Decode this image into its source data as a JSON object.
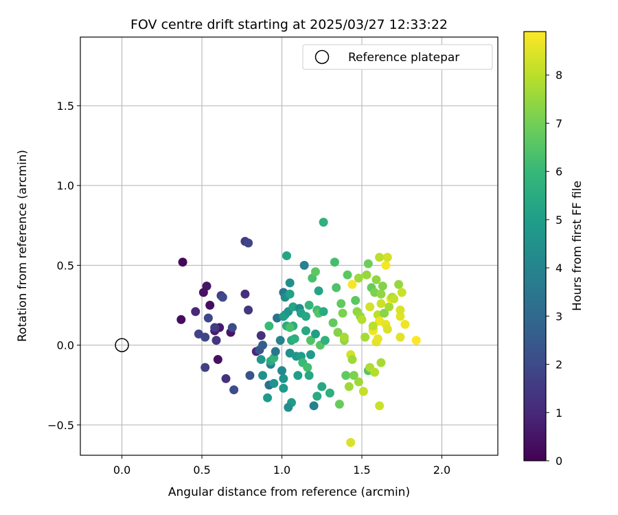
{
  "chart_data": {
    "type": "scatter",
    "title": "FOV centre drift starting at 2025/03/27 12:33:22",
    "xlabel": "Angular distance from reference (arcmin)",
    "ylabel": "Rotation from reference (arcmin)",
    "xlim": [
      -0.26,
      2.35
    ],
    "ylim": [
      -0.69,
      1.93
    ],
    "xticks": [
      0.0,
      0.5,
      1.0,
      1.5,
      2.0
    ],
    "xtick_labels": [
      "0.0",
      "0.5",
      "1.0",
      "1.5",
      "2.0"
    ],
    "yticks": [
      -0.5,
      0.0,
      0.5,
      1.0,
      1.5
    ],
    "ytick_labels": [
      "−0.5",
      "0.0",
      "0.5",
      "1.0",
      "1.5"
    ],
    "grid": true,
    "legend": {
      "location": "top-right",
      "entries": [
        "Reference platepar"
      ]
    },
    "reference_point": {
      "label": "Reference platepar",
      "x": 0.0,
      "y": 0.0
    },
    "colorbar": {
      "label": "Hours from first FF file",
      "range": [
        0,
        8.9
      ],
      "ticks": [
        0,
        1,
        2,
        3,
        4,
        5,
        6,
        7,
        8
      ],
      "tick_labels": [
        "0",
        "1",
        "2",
        "3",
        "4",
        "5",
        "6",
        "7",
        "8"
      ],
      "colormap": [
        "#440154",
        "#482878",
        "#3e4989",
        "#31688e",
        "#26828e",
        "#1f9e89",
        "#35b779",
        "#6ece58",
        "#b5de2b",
        "#fde725"
      ]
    },
    "points": [
      {
        "x": 0.38,
        "y": 0.52,
        "c": 0.2
      },
      {
        "x": 0.37,
        "y": 0.16,
        "c": 0.3
      },
      {
        "x": 0.53,
        "y": 0.37,
        "c": 0.5
      },
      {
        "x": 0.51,
        "y": 0.33,
        "c": 0.4
      },
      {
        "x": 0.55,
        "y": 0.25,
        "c": 0.3
      },
      {
        "x": 0.61,
        "y": 0.11,
        "c": 0.6
      },
      {
        "x": 0.68,
        "y": 0.08,
        "c": 0.5
      },
      {
        "x": 0.58,
        "y": 0.09,
        "c": 0.7
      },
      {
        "x": 0.6,
        "y": -0.09,
        "c": 0.4
      },
      {
        "x": 0.52,
        "y": -0.14,
        "c": 1.7
      },
      {
        "x": 0.65,
        "y": -0.21,
        "c": 1.3
      },
      {
        "x": 0.46,
        "y": 0.21,
        "c": 1.0
      },
      {
        "x": 0.48,
        "y": 0.07,
        "c": 1.8
      },
      {
        "x": 0.52,
        "y": 0.05,
        "c": 1.9
      },
      {
        "x": 0.59,
        "y": 0.03,
        "c": 1.4
      },
      {
        "x": 0.54,
        "y": 0.17,
        "c": 1.9
      },
      {
        "x": 0.58,
        "y": 0.11,
        "c": 1.6
      },
      {
        "x": 0.62,
        "y": 0.31,
        "c": 1.5
      },
      {
        "x": 0.63,
        "y": 0.3,
        "c": 2.0
      },
      {
        "x": 0.69,
        "y": 0.11,
        "c": 2.0
      },
      {
        "x": 0.7,
        "y": -0.28,
        "c": 2.1
      },
      {
        "x": 0.77,
        "y": 0.65,
        "c": 1.6
      },
      {
        "x": 0.79,
        "y": 0.64,
        "c": 1.9
      },
      {
        "x": 0.77,
        "y": 0.32,
        "c": 1.2
      },
      {
        "x": 0.79,
        "y": 0.22,
        "c": 1.4
      },
      {
        "x": 0.8,
        "y": -0.19,
        "c": 2.3
      },
      {
        "x": 0.84,
        "y": -0.04,
        "c": 1.0
      },
      {
        "x": 0.87,
        "y": 0.06,
        "c": 1.3
      },
      {
        "x": 0.86,
        "y": -0.03,
        "c": 2.3
      },
      {
        "x": 0.88,
        "y": 0.0,
        "c": 2.6
      },
      {
        "x": 0.87,
        "y": -0.09,
        "c": 4.7
      },
      {
        "x": 0.88,
        "y": -0.19,
        "c": 4.5
      },
      {
        "x": 0.91,
        "y": -0.33,
        "c": 4.8
      },
      {
        "x": 0.92,
        "y": -0.25,
        "c": 3.2
      },
      {
        "x": 0.93,
        "y": -0.12,
        "c": 3.8
      },
      {
        "x": 0.95,
        "y": -0.24,
        "c": 4.6
      },
      {
        "x": 0.93,
        "y": -0.1,
        "c": 5.5
      },
      {
        "x": 0.95,
        "y": -0.08,
        "c": 5.8
      },
      {
        "x": 0.96,
        "y": -0.04,
        "c": 3.5
      },
      {
        "x": 0.97,
        "y": 0.17,
        "c": 3.4
      },
      {
        "x": 0.92,
        "y": 0.12,
        "c": 6.0
      },
      {
        "x": 0.99,
        "y": 0.03,
        "c": 4.0
      },
      {
        "x": 1.0,
        "y": -0.16,
        "c": 4.2
      },
      {
        "x": 1.01,
        "y": -0.21,
        "c": 4.6
      },
      {
        "x": 1.01,
        "y": -0.27,
        "c": 4.8
      },
      {
        "x": 1.01,
        "y": 0.18,
        "c": 4.9
      },
      {
        "x": 1.02,
        "y": 0.19,
        "c": 5.0
      },
      {
        "x": 1.01,
        "y": 0.33,
        "c": 3.6
      },
      {
        "x": 1.02,
        "y": 0.3,
        "c": 4.3
      },
      {
        "x": 1.03,
        "y": 0.12,
        "c": 5.4
      },
      {
        "x": 1.03,
        "y": 0.56,
        "c": 5.2
      },
      {
        "x": 1.04,
        "y": 0.21,
        "c": 4.6
      },
      {
        "x": 1.05,
        "y": 0.32,
        "c": 5.1
      },
      {
        "x": 1.05,
        "y": 0.39,
        "c": 4.4
      },
      {
        "x": 1.05,
        "y": -0.05,
        "c": 4.5
      },
      {
        "x": 1.06,
        "y": 0.03,
        "c": 5.4
      },
      {
        "x": 1.06,
        "y": -0.36,
        "c": 4.8
      },
      {
        "x": 1.04,
        "y": -0.39,
        "c": 4.4
      },
      {
        "x": 1.07,
        "y": 0.24,
        "c": 5.2
      },
      {
        "x": 1.07,
        "y": 0.12,
        "c": 5.5
      },
      {
        "x": 1.08,
        "y": 0.04,
        "c": 5.6
      },
      {
        "x": 1.09,
        "y": -0.07,
        "c": 4.7
      },
      {
        "x": 1.1,
        "y": -0.19,
        "c": 5.0
      },
      {
        "x": 1.11,
        "y": 0.23,
        "c": 4.3
      },
      {
        "x": 1.12,
        "y": 0.2,
        "c": 5.1
      },
      {
        "x": 1.12,
        "y": -0.07,
        "c": 4.9
      },
      {
        "x": 1.13,
        "y": -0.11,
        "c": 6.0
      },
      {
        "x": 1.14,
        "y": 0.5,
        "c": 3.9
      },
      {
        "x": 1.15,
        "y": 0.09,
        "c": 5.3
      },
      {
        "x": 1.15,
        "y": 0.18,
        "c": 5.3
      },
      {
        "x": 1.16,
        "y": -0.14,
        "c": 6.2
      },
      {
        "x": 1.17,
        "y": 0.25,
        "c": 5.8
      },
      {
        "x": 1.17,
        "y": -0.19,
        "c": 5.3
      },
      {
        "x": 1.18,
        "y": -0.06,
        "c": 4.8
      },
      {
        "x": 1.18,
        "y": 0.03,
        "c": 6.4
      },
      {
        "x": 1.19,
        "y": 0.42,
        "c": 6.3
      },
      {
        "x": 1.2,
        "y": -0.38,
        "c": 3.9
      },
      {
        "x": 1.21,
        "y": 0.07,
        "c": 5.0
      },
      {
        "x": 1.21,
        "y": 0.46,
        "c": 6.6
      },
      {
        "x": 1.22,
        "y": 0.22,
        "c": 6.1
      },
      {
        "x": 1.22,
        "y": -0.32,
        "c": 5.4
      },
      {
        "x": 1.23,
        "y": 0.34,
        "c": 5.2
      },
      {
        "x": 1.23,
        "y": 0.2,
        "c": 6.5
      },
      {
        "x": 1.24,
        "y": 0.0,
        "c": 6.5
      },
      {
        "x": 1.25,
        "y": -0.26,
        "c": 5.3
      },
      {
        "x": 1.26,
        "y": 0.21,
        "c": 5.4
      },
      {
        "x": 1.26,
        "y": 0.77,
        "c": 5.7
      },
      {
        "x": 1.27,
        "y": 0.03,
        "c": 5.7
      },
      {
        "x": 1.3,
        "y": -0.3,
        "c": 5.6
      },
      {
        "x": 1.32,
        "y": 0.14,
        "c": 6.7
      },
      {
        "x": 1.33,
        "y": 0.52,
        "c": 6.2
      },
      {
        "x": 1.34,
        "y": 0.36,
        "c": 6.4
      },
      {
        "x": 1.35,
        "y": 0.08,
        "c": 7.2
      },
      {
        "x": 1.36,
        "y": -0.37,
        "c": 6.8
      },
      {
        "x": 1.37,
        "y": 0.26,
        "c": 6.7
      },
      {
        "x": 1.38,
        "y": 0.2,
        "c": 7.1
      },
      {
        "x": 1.39,
        "y": 0.03,
        "c": 7.4
      },
      {
        "x": 1.39,
        "y": 0.05,
        "c": 7.7
      },
      {
        "x": 1.4,
        "y": -0.19,
        "c": 6.7
      },
      {
        "x": 1.41,
        "y": 0.44,
        "c": 6.6
      },
      {
        "x": 1.42,
        "y": -0.26,
        "c": 7.6
      },
      {
        "x": 1.43,
        "y": -0.61,
        "c": 8.4
      },
      {
        "x": 1.43,
        "y": -0.06,
        "c": 8.3
      },
      {
        "x": 1.44,
        "y": 0.38,
        "c": 8.8
      },
      {
        "x": 1.44,
        "y": -0.09,
        "c": 7.6
      },
      {
        "x": 1.45,
        "y": -0.19,
        "c": 7.1
      },
      {
        "x": 1.46,
        "y": 0.28,
        "c": 6.6
      },
      {
        "x": 1.47,
        "y": 0.21,
        "c": 7.4
      },
      {
        "x": 1.48,
        "y": 0.42,
        "c": 7.6
      },
      {
        "x": 1.48,
        "y": -0.23,
        "c": 7.6
      },
      {
        "x": 1.49,
        "y": 0.18,
        "c": 7.5
      },
      {
        "x": 1.5,
        "y": 0.16,
        "c": 7.9
      },
      {
        "x": 1.51,
        "y": -0.29,
        "c": 8.1
      },
      {
        "x": 1.52,
        "y": 0.05,
        "c": 7.7
      },
      {
        "x": 1.53,
        "y": 0.44,
        "c": 7.5
      },
      {
        "x": 1.54,
        "y": -0.16,
        "c": 6.5
      },
      {
        "x": 1.54,
        "y": 0.51,
        "c": 6.9
      },
      {
        "x": 1.55,
        "y": 0.24,
        "c": 8.3
      },
      {
        "x": 1.55,
        "y": -0.14,
        "c": 7.8
      },
      {
        "x": 1.56,
        "y": 0.36,
        "c": 6.8
      },
      {
        "x": 1.57,
        "y": 0.1,
        "c": 7.9
      },
      {
        "x": 1.57,
        "y": 0.09,
        "c": 8.7
      },
      {
        "x": 1.58,
        "y": 0.33,
        "c": 7.1
      },
      {
        "x": 1.58,
        "y": -0.17,
        "c": 7.9
      },
      {
        "x": 1.59,
        "y": 0.02,
        "c": 8.5
      },
      {
        "x": 1.59,
        "y": 0.41,
        "c": 7.4
      },
      {
        "x": 1.6,
        "y": 0.19,
        "c": 8.0
      },
      {
        "x": 1.61,
        "y": 0.15,
        "c": 8.7
      },
      {
        "x": 1.61,
        "y": 0.55,
        "c": 8.0
      },
      {
        "x": 1.61,
        "y": -0.38,
        "c": 8.2
      },
      {
        "x": 1.62,
        "y": 0.32,
        "c": 7.4
      },
      {
        "x": 1.62,
        "y": 0.26,
        "c": 8.2
      },
      {
        "x": 1.62,
        "y": -0.11,
        "c": 7.7
      },
      {
        "x": 1.63,
        "y": 0.37,
        "c": 7.2
      },
      {
        "x": 1.64,
        "y": 0.2,
        "c": 7.3
      },
      {
        "x": 1.65,
        "y": 0.5,
        "c": 8.8
      },
      {
        "x": 1.65,
        "y": 0.13,
        "c": 8.6
      },
      {
        "x": 1.66,
        "y": 0.1,
        "c": 8.4
      },
      {
        "x": 1.66,
        "y": 0.55,
        "c": 8.3
      },
      {
        "x": 1.67,
        "y": 0.24,
        "c": 7.7
      },
      {
        "x": 1.68,
        "y": 0.29,
        "c": 8.8
      },
      {
        "x": 1.69,
        "y": 0.3,
        "c": 7.8
      },
      {
        "x": 1.7,
        "y": 0.29,
        "c": 8.1
      },
      {
        "x": 1.73,
        "y": 0.38,
        "c": 7.5
      },
      {
        "x": 1.74,
        "y": 0.18,
        "c": 8.5
      },
      {
        "x": 1.74,
        "y": 0.22,
        "c": 8.4
      },
      {
        "x": 1.75,
        "y": 0.33,
        "c": 8.2
      },
      {
        "x": 1.74,
        "y": 0.05,
        "c": 8.5
      },
      {
        "x": 1.77,
        "y": 0.13,
        "c": 8.7
      },
      {
        "x": 1.84,
        "y": 0.03,
        "c": 8.9
      },
      {
        "x": 1.6,
        "y": 0.04,
        "c": 8.6
      },
      {
        "x": 1.57,
        "y": 0.12,
        "c": 8.0
      },
      {
        "x": 1.05,
        "y": 0.11,
        "c": 6.3
      }
    ]
  }
}
